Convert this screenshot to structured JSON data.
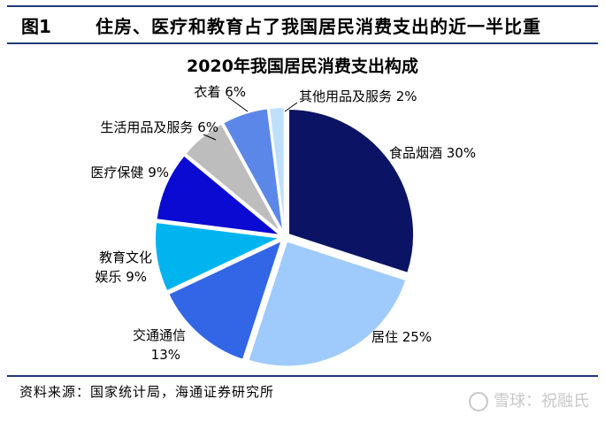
{
  "header": {
    "figure_number": "图1",
    "title": "住房、医疗和教育占了我国居民消费支出的近一半比重"
  },
  "chart_data": {
    "type": "pie",
    "title": "2020年我国居民消费支出构成",
    "slices": [
      {
        "label": "食品烟酒",
        "value": 30,
        "text": "食品烟酒 30%",
        "color": "#0b1464"
      },
      {
        "label": "居住",
        "value": 25,
        "text": "居住 25%",
        "color": "#9ecbfb"
      },
      {
        "label": "交通通信",
        "value": 13,
        "text": "交通通信",
        "text2": "13%",
        "color": "#3366e6"
      },
      {
        "label": "教育文化娱乐",
        "value": 9,
        "text": "教育文化",
        "text2": "娱乐 9%",
        "color": "#00b4f0"
      },
      {
        "label": "医疗保健",
        "value": 9,
        "text": "医疗保健 9%",
        "color": "#0a0ad2"
      },
      {
        "label": "生活用品及服务",
        "value": 6,
        "text": "生活用品及服务 6%",
        "color": "#bdbdbd"
      },
      {
        "label": "衣着",
        "value": 6,
        "text": "衣着 6%",
        "color": "#5b88e8"
      },
      {
        "label": "其他用品及服务",
        "value": 2,
        "text": "其他用品及服务 2%",
        "color": "#bfe0fb"
      }
    ]
  },
  "source": "资料来源：国家统计局，海通证券研究所",
  "watermark": "雪球：祝融氏"
}
